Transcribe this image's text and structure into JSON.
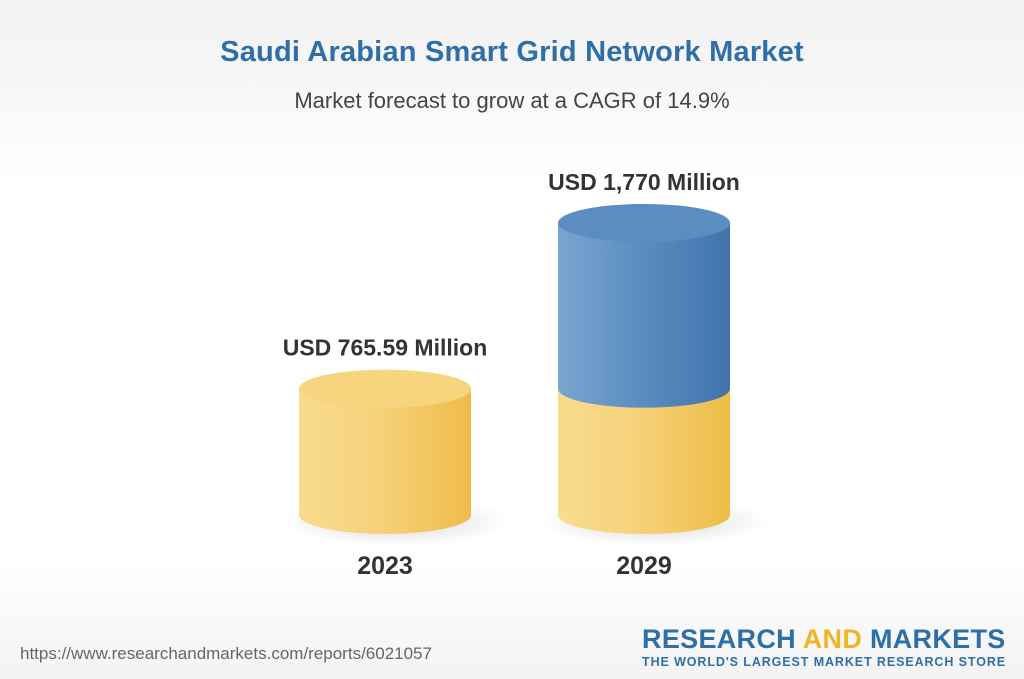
{
  "chart_data": {
    "type": "bar",
    "title": "Saudi Arabian Smart Grid Network Market",
    "subtitle": "Market forecast to grow at a CAGR of 14.9%",
    "categories": [
      "2023",
      "2029"
    ],
    "values": [
      765.59,
      1770
    ],
    "data_labels": [
      "USD 765.59 Million",
      "USD 1,770 Million"
    ],
    "base_value": 765.59,
    "unit": "USD Million",
    "grid": false,
    "colors": {
      "base": "#f2c45a",
      "base_light": "#f8dc8f",
      "growth": "#4a7fb5",
      "growth_light": "#79a4cf"
    }
  },
  "footer": {
    "source_url": "https://www.researchandmarkets.com/reports/6021057",
    "brand_part1": "RESEARCH ",
    "brand_part2": "AND",
    "brand_part3": " MARKETS",
    "tagline": "THE WORLD'S LARGEST MARKET RESEARCH STORE"
  }
}
